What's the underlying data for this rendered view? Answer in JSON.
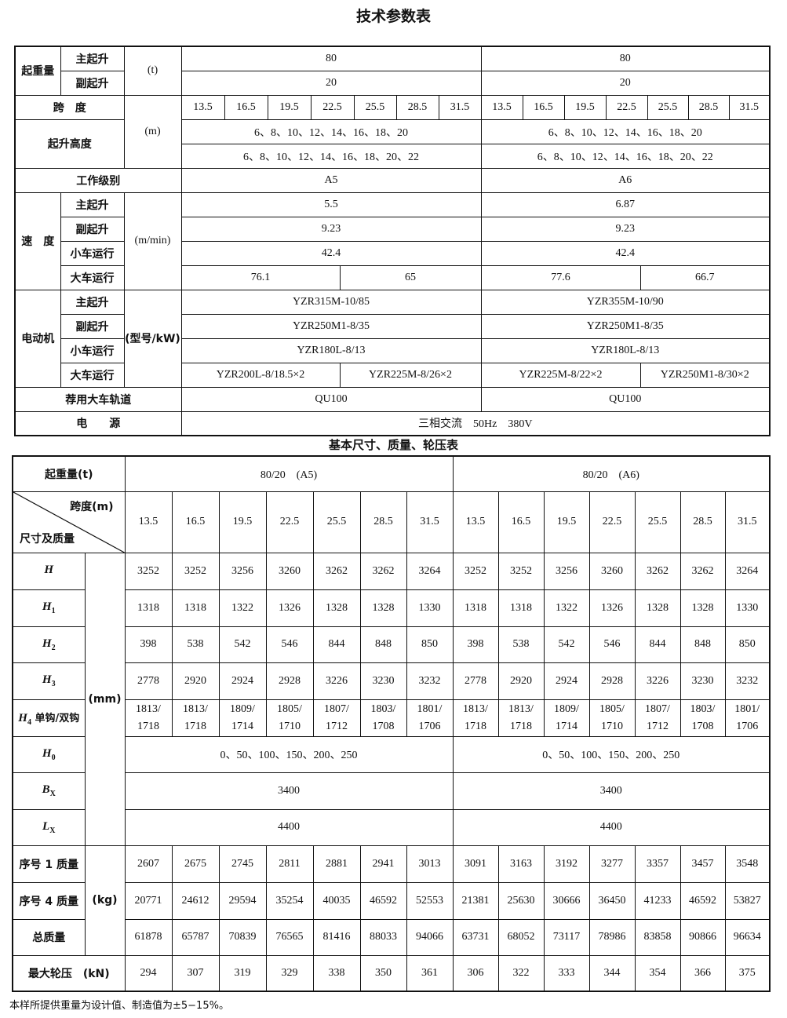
{
  "spec": {
    "title": "技术参数表",
    "capacity": {
      "label": "起重量",
      "main": "主起升",
      "aux": "副起升",
      "unit": "(t)",
      "main_values": [
        "80",
        "80"
      ],
      "aux_values": [
        "20",
        "20"
      ]
    },
    "span": {
      "label": "跨　度",
      "unit": "(m)",
      "values": [
        "13.5",
        "16.5",
        "19.5",
        "22.5",
        "25.5",
        "28.5",
        "31.5",
        "13.5",
        "16.5",
        "19.5",
        "22.5",
        "25.5",
        "28.5",
        "31.5"
      ]
    },
    "lift_height": {
      "label": "起升高度",
      "values": [
        "6、8、10、12、14、16、18、20",
        "6、8、10、12、14、16、18、20"
      ],
      "values2": [
        "6、8、10、12、14、16、18、20、22",
        "6、8、10、12、14、16、18、20、22"
      ]
    },
    "work_class": {
      "label": "工作级别",
      "values": [
        "A5",
        "A6"
      ]
    },
    "speed": {
      "label": "速　度",
      "unit": "(m/min)",
      "rows": [
        {
          "label": "主起升",
          "values": [
            "5.5",
            "6.87"
          ]
        },
        {
          "label": "副起升",
          "values": [
            "9.23",
            "9.23"
          ]
        },
        {
          "label": "小车运行",
          "values": [
            "42.4",
            "42.4"
          ]
        },
        {
          "label": "大车运行",
          "values": [
            "76.1",
            "65",
            "77.6",
            "66.7"
          ]
        }
      ]
    },
    "motor": {
      "label": "电动机",
      "unit": "(型号/kW)",
      "rows": [
        {
          "label": "主起升",
          "values": [
            "YZR315M-10/85",
            "YZR355M-10/90"
          ]
        },
        {
          "label": "副起升",
          "values": [
            "YZR250M1-8/35",
            "YZR250M1-8/35"
          ]
        },
        {
          "label": "小车运行",
          "values": [
            "YZR180L-8/13",
            "YZR180L-8/13"
          ]
        },
        {
          "label": "大车运行",
          "values": [
            "YZR200L-8/18.5×2",
            "YZR225M-8/26×2",
            "YZR225M-8/22×2",
            "YZR250M1-8/30×2"
          ]
        }
      ]
    },
    "rail": {
      "label": "荐用大车轨道",
      "values": [
        "QU100",
        "QU100"
      ]
    },
    "power": {
      "label": "电　　源",
      "value": "三相交流　50Hz　380V"
    }
  },
  "dims": {
    "title": "基本尺寸、质量、轮压表",
    "capacity_label": "起重量(t)",
    "groups": [
      "80/20　(A5)",
      "80/20　(A6)"
    ],
    "span_label": "跨度(m)",
    "dim_label": "尺寸及质量",
    "spans": [
      "13.5",
      "16.5",
      "19.5",
      "22.5",
      "25.5",
      "28.5",
      "31.5",
      "13.5",
      "16.5",
      "19.5",
      "22.5",
      "25.5",
      "28.5",
      "31.5"
    ],
    "unit_mm": "(mm)",
    "unit_kg": "(kg)",
    "mm_rows": [
      {
        "sym": "H",
        "sub": "",
        "extra": "",
        "values": [
          "3252",
          "3252",
          "3256",
          "3260",
          "3262",
          "3262",
          "3264",
          "3252",
          "3252",
          "3256",
          "3260",
          "3262",
          "3262",
          "3264"
        ]
      },
      {
        "sym": "H",
        "sub": "1",
        "extra": "",
        "values": [
          "1318",
          "1318",
          "1322",
          "1326",
          "1328",
          "1328",
          "1330",
          "1318",
          "1318",
          "1322",
          "1326",
          "1328",
          "1328",
          "1330"
        ]
      },
      {
        "sym": "H",
        "sub": "2",
        "extra": "",
        "values": [
          "398",
          "538",
          "542",
          "546",
          "844",
          "848",
          "850",
          "398",
          "538",
          "542",
          "546",
          "844",
          "848",
          "850"
        ]
      },
      {
        "sym": "H",
        "sub": "3",
        "extra": "",
        "values": [
          "2778",
          "2920",
          "2924",
          "2928",
          "3226",
          "3230",
          "3232",
          "2778",
          "2920",
          "2924",
          "2928",
          "3226",
          "3230",
          "3232"
        ]
      },
      {
        "sym": "H",
        "sub": "4",
        "extra": " 单钩/双钩",
        "values": [
          "1813/\n1718",
          "1813/\n1718",
          "1809/\n1714",
          "1805/\n1710",
          "1807/\n1712",
          "1803/\n1708",
          "1801/\n1706",
          "1813/\n1718",
          "1813/\n1718",
          "1809/\n1714",
          "1805/\n1710",
          "1807/\n1712",
          "1803/\n1708",
          "1801/\n1706"
        ]
      },
      {
        "sym": "H",
        "sub": "0",
        "extra": "",
        "values": [
          "0、50、100、150、200、250",
          "0、50、100、150、200、250"
        ]
      },
      {
        "sym": "B",
        "sub": "X",
        "extra": "",
        "values": [
          "3400",
          "3400"
        ]
      },
      {
        "sym": "L",
        "sub": "X",
        "extra": "",
        "values": [
          "4400",
          "4400"
        ]
      }
    ],
    "kg_rows": [
      {
        "label": "序号 1 质量",
        "values": [
          "2607",
          "2675",
          "2745",
          "2811",
          "2881",
          "2941",
          "3013",
          "3091",
          "3163",
          "3192",
          "3277",
          "3357",
          "3457",
          "3548"
        ]
      },
      {
        "label": "序号 4 质量",
        "values": [
          "20771",
          "24612",
          "29594",
          "35254",
          "40035",
          "46592",
          "52553",
          "21381",
          "25630",
          "30666",
          "36450",
          "41233",
          "46592",
          "53827"
        ]
      },
      {
        "label": "总质量",
        "values": [
          "61878",
          "65787",
          "70839",
          "76565",
          "81416",
          "88033",
          "94066",
          "63731",
          "68052",
          "73117",
          "78986",
          "83858",
          "90866",
          "96634"
        ]
      }
    ],
    "wheel": {
      "label": "最大轮压　(kN)",
      "values": [
        "294",
        "307",
        "319",
        "329",
        "338",
        "350",
        "361",
        "306",
        "322",
        "333",
        "344",
        "354",
        "366",
        "375"
      ]
    }
  },
  "footnote": "本样所提供重量为设计值、制造值为±5−15%。"
}
